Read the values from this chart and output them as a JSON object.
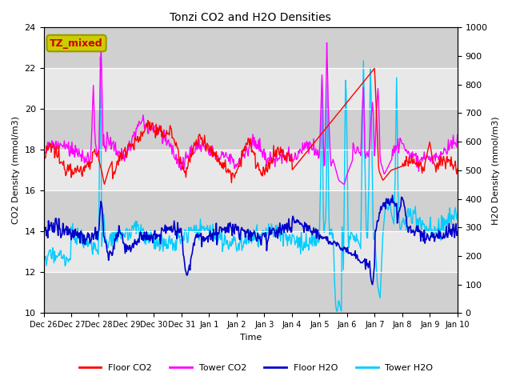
{
  "title": "Tonzi CO2 and H2O Densities",
  "xlabel": "Time",
  "ylabel_left": "CO2 Density (mmol/m3)",
  "ylabel_right": "H2O Density (mmol/m3)",
  "ylim_left": [
    10,
    24
  ],
  "ylim_right": [
    0,
    1000
  ],
  "annotation_text": "TZ_mixed",
  "annotation_bg": "#cccc00",
  "annotation_edge": "#999900",
  "annotation_text_color": "#cc0000",
  "background_color": "#e8e8e8",
  "plot_bg_band1": "#d8d8d8",
  "plot_bg_band2": "#e8e8e8",
  "colors": {
    "floor_co2": "#ff0000",
    "tower_co2": "#ff00ff",
    "floor_h2o": "#0000cc",
    "tower_h2o": "#00ccff"
  },
  "legend": {
    "floor_co2": "Floor CO2",
    "tower_co2": "Tower CO2",
    "floor_h2o": "Floor H2O",
    "tower_h2o": "Tower H2O"
  },
  "x_tick_labels": [
    "Dec 26",
    "Dec 27",
    "Dec 28",
    "Dec 29",
    "Dec 30",
    "Dec 31",
    "Jan 1",
    "Jan 2",
    "Jan 3",
    "Jan 4",
    "Jan 5",
    "Jan 6",
    "Jan 7",
    "Jan 8",
    "Jan 9",
    "Jan 10"
  ],
  "x_tick_positions": [
    0,
    1,
    2,
    3,
    4,
    5,
    6,
    7,
    8,
    9,
    10,
    11,
    12,
    13,
    14,
    15
  ],
  "yticks_left": [
    10,
    12,
    14,
    16,
    18,
    20,
    22,
    24
  ],
  "yticks_right": [
    0,
    100,
    200,
    300,
    400,
    500,
    600,
    700,
    800,
    900,
    1000
  ]
}
